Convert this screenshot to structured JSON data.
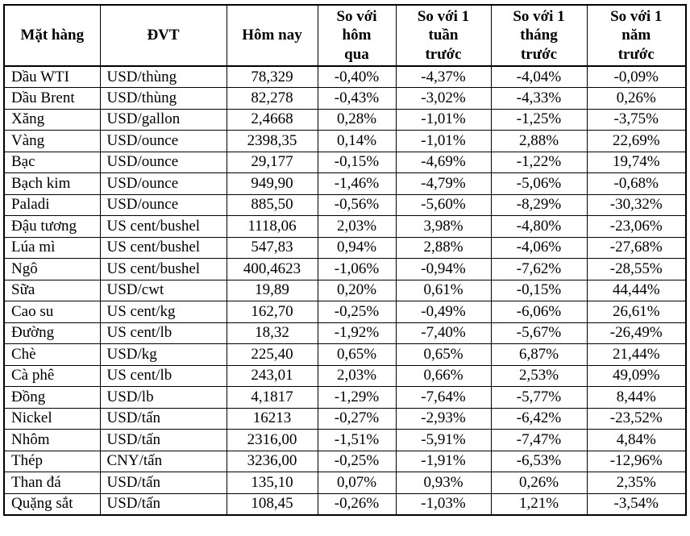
{
  "table": {
    "columns": [
      "Mặt hàng",
      "ĐVT",
      "Hôm nay",
      "So với\nhôm\nqua",
      "So với 1\ntuần\ntrước",
      "So với 1\ntháng\ntrước",
      "So với 1\nnăm\ntrước"
    ],
    "rows": [
      [
        "Dầu WTI",
        "USD/thùng",
        "78,329",
        "-0,40%",
        "-4,37%",
        "-4,04%",
        "-0,09%"
      ],
      [
        "Dầu Brent",
        "USD/thùng",
        "82,278",
        "-0,43%",
        "-3,02%",
        "-4,33%",
        "0,26%"
      ],
      [
        "Xăng",
        "USD/gallon",
        "2,4668",
        "0,28%",
        "-1,01%",
        "-1,25%",
        "-3,75%"
      ],
      [
        "Vàng",
        "USD/ounce",
        "2398,35",
        "0,14%",
        "-1,01%",
        "2,88%",
        "22,69%"
      ],
      [
        "Bạc",
        "USD/ounce",
        "29,177",
        "-0,15%",
        "-4,69%",
        "-1,22%",
        "19,74%"
      ],
      [
        "Bạch kim",
        "USD/ounce",
        "949,90",
        "-1,46%",
        "-4,79%",
        "-5,06%",
        "-0,68%"
      ],
      [
        "Paladi",
        "USD/ounce",
        "885,50",
        "-0,56%",
        "-5,60%",
        "-8,29%",
        "-30,32%"
      ],
      [
        "Đậu tương",
        "US cent/bushel",
        "1118,06",
        "2,03%",
        "3,98%",
        "-4,80%",
        "-23,06%"
      ],
      [
        "Lúa mì",
        "US cent/bushel",
        "547,83",
        "0,94%",
        "2,88%",
        "-4,06%",
        "-27,68%"
      ],
      [
        "Ngô",
        "US cent/bushel",
        "400,4623",
        "-1,06%",
        "-0,94%",
        "-7,62%",
        "-28,55%"
      ],
      [
        "Sữa",
        "USD/cwt",
        "19,89",
        "0,20%",
        "0,61%",
        "-0,15%",
        "44,44%"
      ],
      [
        "Cao su",
        "US cent/kg",
        "162,70",
        "-0,25%",
        "-0,49%",
        "-6,06%",
        "26,61%"
      ],
      [
        "Đường",
        "US cent/lb",
        "18,32",
        "-1,92%",
        "-7,40%",
        "-5,67%",
        "-26,49%"
      ],
      [
        "Chè",
        "USD/kg",
        "225,40",
        "0,65%",
        "0,65%",
        "6,87%",
        "21,44%"
      ],
      [
        "Cà phê",
        "US cent/lb",
        "243,01",
        "2,03%",
        "0,66%",
        "2,53%",
        "49,09%"
      ],
      [
        "Đồng",
        "USD/lb",
        "4,1817",
        "-1,29%",
        "-7,64%",
        "-5,77%",
        "8,44%"
      ],
      [
        "Nickel",
        "USD/tấn",
        "16213",
        "-0,27%",
        "-2,93%",
        "-6,42%",
        "-23,52%"
      ],
      [
        "Nhôm",
        "USD/tấn",
        "2316,00",
        "-1,51%",
        "-5,91%",
        "-7,47%",
        "4,84%"
      ],
      [
        "Thép",
        "CNY/tấn",
        "3236,00",
        "-0,25%",
        "-1,91%",
        "-6,53%",
        "-12,96%"
      ],
      [
        "Than đá",
        "USD/tấn",
        "135,10",
        "0,07%",
        "0,93%",
        "0,26%",
        "2,35%"
      ],
      [
        "Quặng sắt",
        "USD/tấn",
        "108,45",
        "-0,26%",
        "-1,03%",
        "1,21%",
        "-3,54%"
      ]
    ]
  }
}
